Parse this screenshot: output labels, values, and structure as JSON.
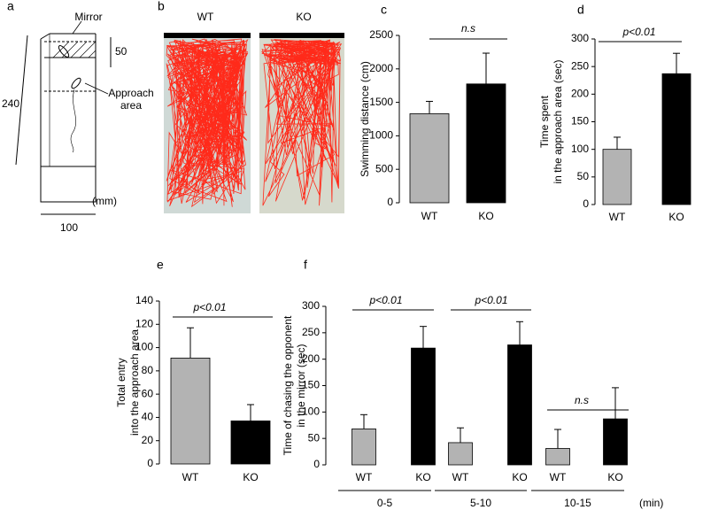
{
  "panel_labels": [
    "a",
    "b",
    "c",
    "d",
    "e",
    "f"
  ],
  "diagram": {
    "labels": [
      "Mirror",
      "50",
      "240",
      "Approach",
      "area",
      "(mm)",
      "100"
    ]
  },
  "tracks": {
    "labels": [
      "WT",
      "KO"
    ]
  },
  "chart_data": [
    {
      "type": "bar",
      "ylabel": "Swimming distance (cm)",
      "categories": [
        "WT",
        "KO"
      ],
      "values": [
        1330,
        1775
      ],
      "errors": [
        185,
        460
      ],
      "colors": [
        "#b3b3b3",
        "#000000"
      ],
      "ylim": [
        0,
        2500
      ],
      "yticks": [
        0,
        500,
        1000,
        1500,
        2000,
        2500
      ],
      "annotations": [
        "n.s"
      ]
    },
    {
      "type": "bar",
      "ylabel": [
        "Time spent",
        "in the approach area  (sec)"
      ],
      "categories": [
        "WT",
        "KO"
      ],
      "values": [
        100,
        237
      ],
      "errors": [
        22,
        37
      ],
      "colors": [
        "#b3b3b3",
        "#000000"
      ],
      "ylim": [
        0,
        300
      ],
      "yticks": [
        0,
        50,
        100,
        150,
        200,
        250,
        300
      ],
      "annotations": [
        "p<0.01"
      ]
    },
    {
      "type": "bar",
      "ylabel": [
        "Total entry",
        "into the approach area"
      ],
      "categories": [
        "WT",
        "KO"
      ],
      "values": [
        91,
        37
      ],
      "errors": [
        26,
        14
      ],
      "colors": [
        "#b3b3b3",
        "#000000"
      ],
      "ylim": [
        0,
        140
      ],
      "yticks": [
        0,
        20,
        40,
        60,
        80,
        100,
        120,
        140
      ],
      "annotations": [
        "p<0.01"
      ]
    },
    {
      "type": "grouped_bar",
      "ylabel": [
        "Time of chasing the opponent",
        "in the mirror (sec)"
      ],
      "categories": [
        "0-5",
        "5-10",
        "10-15"
      ],
      "xlabel": "(min)",
      "series": [
        {
          "name": "WT",
          "color": "#b3b3b3",
          "values": [
            68,
            42,
            31
          ],
          "errors": [
            27,
            28,
            36
          ]
        },
        {
          "name": "KO",
          "color": "#000000",
          "values": [
            221,
            227,
            87
          ],
          "errors": [
            41,
            44,
            59
          ]
        }
      ],
      "ylim": [
        0,
        300
      ],
      "yticks": [
        0,
        50,
        100,
        150,
        200,
        250,
        300
      ],
      "annotations": [
        "p<0.01",
        "p<0.01",
        "n.s"
      ]
    }
  ]
}
